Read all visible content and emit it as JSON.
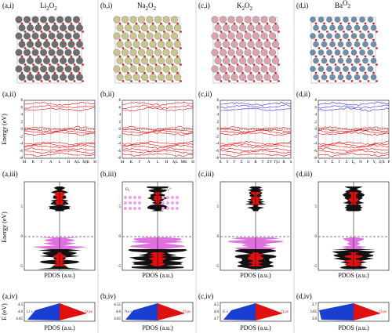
{
  "panels": [
    {
      "label_i": "(a,i)",
      "formula": [
        "Li",
        "2",
        "O",
        "2"
      ],
      "label_ii": "(a,ii)",
      "kpoints": [
        "M",
        "K",
        "Γ",
        "A",
        "L",
        "H",
        "A|L",
        "M|K",
        "H"
      ],
      "label_iii": "(a,iii)",
      "label_iv": "(a,iv)",
      "iv_ticks": [
        "4.5",
        "4.6",
        "4.65"
      ],
      "iv_left": "Li s",
      "iv_right": "O pz"
    },
    {
      "label_i": "(b,i)",
      "formula": [
        "Na",
        "2",
        "O",
        "2"
      ],
      "label_ii": "(b,ii)",
      "kpoints": [
        "M",
        "K",
        "Γ",
        "A",
        "L",
        "H",
        "A|L",
        "MK",
        "H"
      ],
      "label_iii": "(b,iii)",
      "label_iv": "(b,iv)",
      "iv_ticks": [
        "4.55",
        "4.6",
        "4.65"
      ],
      "iv_left": "Na s",
      "iv_right": "O pz"
    },
    {
      "label_i": "(c,i)",
      "formula": [
        "K",
        "2",
        "O",
        "2"
      ],
      "label_ii": "(c,ii)",
      "kpoints": [
        "X",
        "Y",
        "Γ",
        "Z",
        "U",
        "R",
        "T",
        "ZY",
        "T|U",
        "R",
        "S"
      ],
      "label_iii": "(c,iii)",
      "label_iv": "(c,iv)",
      "iv_ticks": [
        "4.5",
        "4.6",
        "4.7"
      ],
      "iv_left": "K s",
      "iv_right": "O pz"
    },
    {
      "label_i": "(d,i)",
      "formula": [
        "Ba",
        "",
        "O",
        "2"
      ],
      "label_ii": "(d,ii)",
      "kpoints": [
        "X",
        "Y",
        "Σ",
        "Γ",
        "Z",
        "Σ₁",
        "N",
        "P",
        "Y₁",
        "Z|X",
        "P"
      ],
      "label_iii": "(d,iii)",
      "label_iv": "(d,iv)",
      "iv_ticks": [
        "3.7",
        "3.65",
        "3.6"
      ],
      "iv_left": "Ba d",
      "iv_right": "O pz"
    }
  ],
  "band_ticks": [
    "8",
    "6",
    "4",
    "2",
    "0",
    "-2",
    "-4",
    "-6",
    "-8"
  ],
  "dos_ticks": [
    "5",
    "0",
    "-5"
  ],
  "energy_label": "Energy (eV)",
  "iv_axis_label": "E (eV)",
  "pdos_label": "PDOS (a.u.)",
  "inset": [
    "O₂",
    "O₂²⁻"
  ]
}
